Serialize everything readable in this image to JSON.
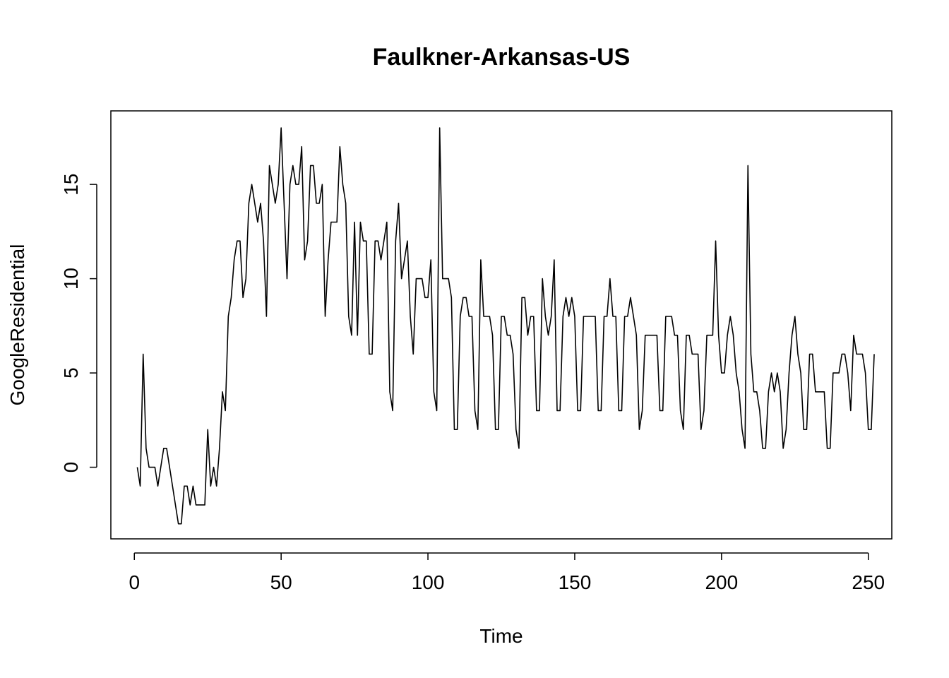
{
  "chart_data": {
    "type": "line",
    "title": "Faulkner-Arkansas-US",
    "xlabel": "Time",
    "ylabel": "GoogleResidential",
    "xlim": [
      -8,
      258
    ],
    "ylim": [
      -3.8,
      18.9
    ],
    "xticks": [
      0,
      50,
      100,
      150,
      200,
      250
    ],
    "yticks": [
      0,
      5,
      10,
      15
    ],
    "grid": false,
    "series": [
      {
        "x_start": 1,
        "values": [
          0,
          -1,
          6,
          1,
          0,
          0,
          0,
          -1,
          0,
          1,
          1,
          0,
          -1,
          -2,
          -3,
          -3,
          -1,
          -1,
          -2,
          -1,
          -2,
          -2,
          -2,
          -2,
          2,
          -1,
          0,
          -1,
          1,
          4,
          3,
          8,
          9,
          11,
          12,
          12,
          9,
          10,
          14,
          15,
          14,
          13,
          14,
          12,
          8,
          16,
          15,
          14,
          15,
          18,
          14,
          10,
          15,
          16,
          15,
          15,
          17,
          11,
          12,
          16,
          16,
          14,
          14,
          15,
          8,
          11,
          13,
          13,
          13,
          17,
          15,
          14,
          8,
          7,
          13,
          7,
          13,
          12,
          12,
          6,
          6,
          12,
          12,
          11,
          12,
          13,
          4,
          3,
          12,
          14,
          10,
          11,
          12,
          8,
          6,
          10,
          10,
          10,
          9,
          9,
          11,
          4,
          3,
          18,
          10,
          10,
          10,
          9,
          2,
          2,
          8,
          9,
          9,
          8,
          8,
          3,
          2,
          11,
          8,
          8,
          8,
          7,
          2,
          2,
          8,
          8,
          7,
          7,
          6,
          2,
          1,
          9,
          9,
          7,
          8,
          8,
          3,
          3,
          10,
          8,
          7,
          8,
          11,
          3,
          3,
          8,
          9,
          8,
          9,
          8,
          3,
          3,
          8,
          8,
          8,
          8,
          8,
          3,
          3,
          8,
          8,
          10,
          8,
          8,
          3,
          3,
          8,
          8,
          9,
          8,
          7,
          2,
          3,
          7,
          7,
          7,
          7,
          7,
          3,
          3,
          8,
          8,
          8,
          7,
          7,
          3,
          2,
          7,
          7,
          6,
          6,
          6,
          2,
          3,
          7,
          7,
          7,
          12,
          7,
          5,
          5,
          7,
          8,
          7,
          5,
          4,
          2,
          1,
          16,
          6,
          4,
          4,
          3,
          1,
          1,
          4,
          5,
          4,
          5,
          4,
          1,
          2,
          5,
          7,
          8,
          6,
          5,
          2,
          2,
          6,
          6,
          4,
          4,
          4,
          4,
          1,
          1,
          5,
          5,
          5,
          6,
          6,
          5,
          3,
          7,
          6,
          6,
          6,
          5,
          2,
          2,
          6
        ]
      }
    ]
  }
}
